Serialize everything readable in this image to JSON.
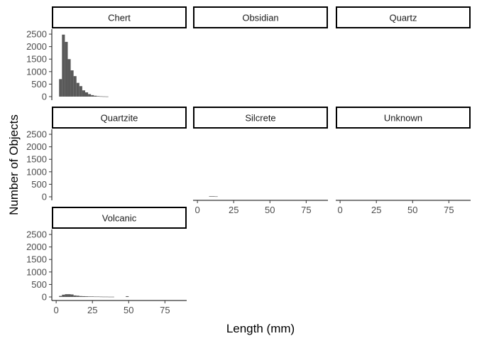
{
  "chart_data": {
    "type": "bar",
    "subtype": "faceted-histogram",
    "xlabel": "Length (mm)",
    "ylabel": "Number of Objects",
    "xlim": [
      -3,
      90
    ],
    "ylim": [
      0,
      2700
    ],
    "x_ticks": [
      0,
      25,
      50,
      75
    ],
    "y_ticks": [
      0,
      500,
      1000,
      1500,
      2000,
      2500
    ],
    "bin_width": 2,
    "grid": false,
    "bar_color": "#595959",
    "facets": [
      {
        "name": "Chert",
        "bins": [
          {
            "x": 3,
            "count": 700
          },
          {
            "x": 5,
            "count": 2480
          },
          {
            "x": 7,
            "count": 2190
          },
          {
            "x": 9,
            "count": 1500
          },
          {
            "x": 11,
            "count": 1050
          },
          {
            "x": 13,
            "count": 820
          },
          {
            "x": 15,
            "count": 550
          },
          {
            "x": 17,
            "count": 420
          },
          {
            "x": 19,
            "count": 250
          },
          {
            "x": 21,
            "count": 170
          },
          {
            "x": 23,
            "count": 100
          },
          {
            "x": 25,
            "count": 60
          },
          {
            "x": 27,
            "count": 35
          },
          {
            "x": 29,
            "count": 20
          },
          {
            "x": 31,
            "count": 12
          },
          {
            "x": 33,
            "count": 8
          },
          {
            "x": 35,
            "count": 5
          }
        ]
      },
      {
        "name": "Obsidian",
        "bins": []
      },
      {
        "name": "Quartz",
        "bins": []
      },
      {
        "name": "Quartzite",
        "bins": []
      },
      {
        "name": "Silcrete",
        "bins": [
          {
            "x": 9,
            "count": 20
          },
          {
            "x": 11,
            "count": 20
          },
          {
            "x": 13,
            "count": 15
          }
        ]
      },
      {
        "name": "Unknown",
        "bins": []
      },
      {
        "name": "Volcanic",
        "bins": [
          {
            "x": 3,
            "count": 40
          },
          {
            "x": 5,
            "count": 90
          },
          {
            "x": 7,
            "count": 110
          },
          {
            "x": 9,
            "count": 110
          },
          {
            "x": 11,
            "count": 100
          },
          {
            "x": 13,
            "count": 60
          },
          {
            "x": 15,
            "count": 50
          },
          {
            "x": 17,
            "count": 35
          },
          {
            "x": 19,
            "count": 30
          },
          {
            "x": 21,
            "count": 25
          },
          {
            "x": 23,
            "count": 20
          },
          {
            "x": 25,
            "count": 20
          },
          {
            "x": 27,
            "count": 15
          },
          {
            "x": 29,
            "count": 15
          },
          {
            "x": 31,
            "count": 12
          },
          {
            "x": 33,
            "count": 10
          },
          {
            "x": 35,
            "count": 10
          },
          {
            "x": 37,
            "count": 8
          },
          {
            "x": 39,
            "count": 8
          },
          {
            "x": 49,
            "count": 30
          }
        ]
      }
    ]
  }
}
